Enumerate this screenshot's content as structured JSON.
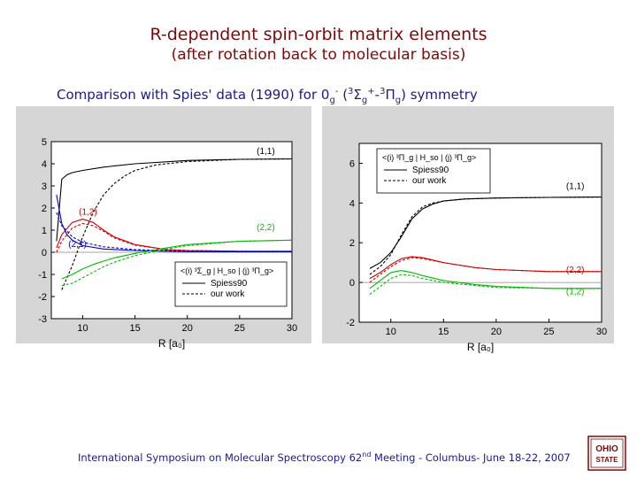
{
  "slide": {
    "title_line1": "R-dependent spin-orbit matrix elements",
    "title_line2": "(after rotation back to molecular basis)",
    "comparison": {
      "prefix": "Comparison with Spies' data (1990) for 0",
      "g_sub": "g",
      "minus_sup": "-",
      "sym_open": " (",
      "sup3a": "3",
      "sigma": "Σ",
      "g_sub2": "g",
      "plus_sup": "+",
      "dash": "-",
      "sup3b": "3",
      "pi": "Π",
      "g_sub3": "g",
      "sym_close": ") symmetry"
    },
    "footer": {
      "before": "International Symposium on Molecular Spectroscopy 62",
      "sup": "nd",
      "after": " Meeting - Columbus- June 18-22, 2007"
    },
    "logo_text": "OHIO STATE"
  },
  "colors": {
    "title": "#7a0a0a",
    "text": "#1a1a8c",
    "panel_bg": "#d6d6d6",
    "black_curve": "#000000",
    "red_curve": "#cc0000",
    "blue_curve": "#0000cc",
    "green_curve": "#00bb00"
  },
  "chart_data": [
    {
      "type": "line",
      "xlabel": "R [a₀]",
      "ylabel": "",
      "xlim": [
        7,
        30
      ],
      "ylim": [
        -3,
        5
      ],
      "xticks": [
        10,
        15,
        20,
        25,
        30
      ],
      "yticks": [
        -3,
        -2,
        -1,
        0,
        1,
        2,
        3,
        4,
        5
      ],
      "legend": {
        "placement": "bottom-right",
        "header": "<(i) ³Σ_g | H_so | (j) ³Π_g>",
        "entries": [
          "Spiess90",
          "our work"
        ]
      },
      "annotations": [
        {
          "text": "(1,1)",
          "x": 27.5,
          "y": 4.45,
          "color": "#000000"
        },
        {
          "text": "(1,2)",
          "x": 10.5,
          "y": 1.7,
          "color": "#cc0000"
        },
        {
          "text": "(2,2)",
          "x": 27.5,
          "y": 1.0,
          "color": "#00bb00"
        },
        {
          "text": "(2,1)",
          "x": 9.5,
          "y": 0.25,
          "color": "#0000cc"
        }
      ],
      "series": [
        {
          "label": "(1,1)",
          "style": "solid",
          "color": "#000000",
          "x": [
            7.5,
            8,
            8.5,
            9,
            10,
            12,
            15,
            20,
            25,
            30
          ],
          "y": [
            0.5,
            3.3,
            3.5,
            3.6,
            3.7,
            3.85,
            4.0,
            4.15,
            4.2,
            4.22
          ]
        },
        {
          "label": "(1,1)",
          "style": "dashed",
          "color": "#000000",
          "x": [
            8,
            9,
            10,
            11,
            12,
            13,
            14,
            15,
            17,
            20,
            25,
            30
          ],
          "y": [
            -1.7,
            -0.6,
            0.7,
            1.8,
            2.6,
            3.1,
            3.45,
            3.7,
            3.95,
            4.1,
            4.2,
            4.22
          ]
        },
        {
          "label": "(1,2)",
          "style": "solid",
          "color": "#cc0000",
          "x": [
            7.5,
            8,
            9,
            10,
            11,
            12,
            13,
            15,
            18,
            20,
            25,
            30
          ],
          "y": [
            0.2,
            0.8,
            1.35,
            1.5,
            1.35,
            1.0,
            0.7,
            0.35,
            0.12,
            0.08,
            0.05,
            0.05
          ]
        },
        {
          "label": "(1,2)",
          "style": "dashed",
          "color": "#cc0000",
          "x": [
            7.5,
            8,
            9,
            10,
            11,
            12,
            13,
            15,
            18,
            20,
            25,
            30
          ],
          "y": [
            0.0,
            0.5,
            1.1,
            1.3,
            1.2,
            0.95,
            0.65,
            0.32,
            0.12,
            0.08,
            0.05,
            0.05
          ]
        },
        {
          "label": "(2,1)",
          "style": "solid",
          "color": "#0000cc",
          "x": [
            7.5,
            8,
            8.5,
            9,
            10,
            12,
            15,
            18,
            20,
            25,
            30
          ],
          "y": [
            2.6,
            1.3,
            0.8,
            0.55,
            0.3,
            0.15,
            0.08,
            0.05,
            0.03,
            0.02,
            0.02
          ]
        },
        {
          "label": "(2,1)",
          "style": "dashed",
          "color": "#0000cc",
          "x": [
            7.5,
            8,
            9,
            10,
            11,
            12,
            15,
            20,
            25,
            30
          ],
          "y": [
            1.8,
            1.2,
            0.7,
            0.45,
            0.35,
            0.25,
            0.12,
            0.05,
            0.03,
            0.02
          ]
        },
        {
          "label": "(2,2)",
          "style": "solid",
          "color": "#00bb00",
          "x": [
            8,
            9,
            10,
            11,
            12,
            13,
            15,
            18,
            20,
            25,
            30
          ],
          "y": [
            -1.2,
            -1.0,
            -0.75,
            -0.55,
            -0.4,
            -0.25,
            -0.05,
            0.2,
            0.35,
            0.5,
            0.55
          ]
        },
        {
          "label": "(2,2)",
          "style": "dashed",
          "color": "#00bb00",
          "x": [
            8,
            9,
            10,
            11,
            12,
            13,
            15,
            18,
            20,
            25,
            30
          ],
          "y": [
            -1.5,
            -1.4,
            -1.15,
            -0.9,
            -0.65,
            -0.45,
            -0.15,
            0.15,
            0.3,
            0.5,
            0.55
          ]
        }
      ]
    },
    {
      "type": "line",
      "xlabel": "R [a₀]",
      "ylabel": "",
      "xlim": [
        7,
        30
      ],
      "ylim": [
        -2,
        7
      ],
      "xticks": [
        10,
        15,
        20,
        25,
        30
      ],
      "yticks": [
        -2,
        0,
        2,
        4,
        6
      ],
      "legend": {
        "placement": "top-left",
        "header": "<(i) ³Π_g | H_so | (j) ³Π_g>",
        "entries": [
          "Spiess90",
          "our work"
        ]
      },
      "annotations": [
        {
          "text": "(1,1)",
          "x": 27.5,
          "y": 4.7,
          "color": "#000000"
        },
        {
          "text": "(2,2)",
          "x": 27.5,
          "y": 0.5,
          "color": "#cc0000"
        },
        {
          "text": "(1,2)",
          "x": 27.5,
          "y": -0.6,
          "color": "#00bb00"
        }
      ],
      "series": [
        {
          "label": "(1,1)",
          "style": "solid",
          "color": "#000000",
          "x": [
            8,
            9,
            10,
            11,
            12,
            13,
            14,
            15,
            17,
            20,
            25,
            30
          ],
          "y": [
            0.7,
            1.0,
            1.5,
            2.3,
            3.2,
            3.7,
            3.95,
            4.1,
            4.2,
            4.25,
            4.28,
            4.3
          ]
        },
        {
          "label": "(1,1)",
          "style": "dashed",
          "color": "#000000",
          "x": [
            8,
            9,
            10,
            11,
            12,
            13,
            14,
            15,
            17,
            20,
            25,
            30
          ],
          "y": [
            0.4,
            0.8,
            1.4,
            2.4,
            3.3,
            3.8,
            4.0,
            4.1,
            4.2,
            4.25,
            4.28,
            4.3
          ]
        },
        {
          "label": "(2,2)",
          "style": "solid",
          "color": "#cc0000",
          "x": [
            8,
            9,
            10,
            11,
            12,
            13,
            15,
            18,
            20,
            25,
            30
          ],
          "y": [
            0.2,
            0.5,
            0.9,
            1.2,
            1.3,
            1.25,
            1.0,
            0.75,
            0.65,
            0.55,
            0.55
          ]
        },
        {
          "label": "(2,2)",
          "style": "dashed",
          "color": "#cc0000",
          "x": [
            8,
            9,
            10,
            11,
            12,
            13,
            15,
            18,
            20,
            25,
            30
          ],
          "y": [
            0.0,
            0.4,
            0.8,
            1.1,
            1.25,
            1.2,
            1.0,
            0.75,
            0.65,
            0.55,
            0.55
          ]
        },
        {
          "label": "(1,2)",
          "style": "solid",
          "color": "#00bb00",
          "x": [
            8,
            9,
            10,
            11,
            12,
            13,
            15,
            18,
            20,
            25,
            30
          ],
          "y": [
            -0.3,
            0.1,
            0.5,
            0.6,
            0.5,
            0.35,
            0.1,
            -0.1,
            -0.2,
            -0.3,
            -0.3
          ]
        },
        {
          "label": "(1,2)",
          "style": "dashed",
          "color": "#00bb00",
          "x": [
            8,
            9,
            10,
            11,
            12,
            13,
            15,
            18,
            20,
            25,
            30
          ],
          "y": [
            -0.6,
            -0.2,
            0.2,
            0.4,
            0.35,
            0.2,
            0.0,
            -0.15,
            -0.25,
            -0.3,
            -0.3
          ]
        }
      ]
    }
  ]
}
